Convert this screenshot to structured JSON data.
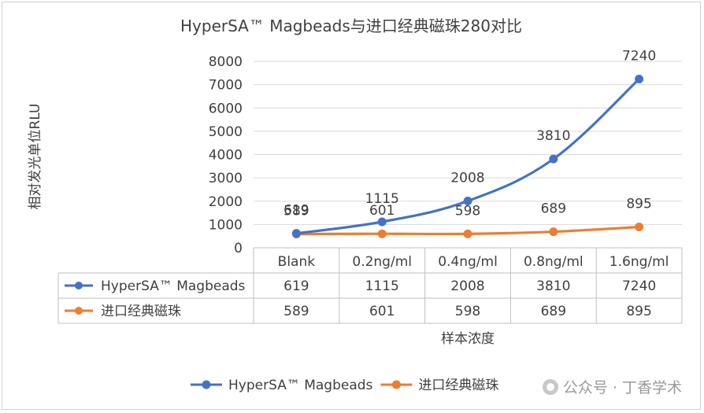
{
  "chart_data": {
    "type": "line",
    "title": "HyperSA™ Magbeads与进口经典磁珠280对比",
    "xlabel": "样本浓度",
    "ylabel": "相对发光单位RLU",
    "categories": [
      "Blank",
      "0.2ng/ml",
      "0.4ng/ml",
      "0.8ng/ml",
      "1.6ng/ml"
    ],
    "ylim": [
      0,
      8000
    ],
    "yticks": [
      0,
      1000,
      2000,
      3000,
      4000,
      5000,
      6000,
      7000,
      8000
    ],
    "grid": true,
    "legend_position": "bottom",
    "data_table": true,
    "series": [
      {
        "name": "HyperSA™ Magbeads",
        "values": [
          619,
          1115,
          2008,
          3810,
          7240
        ],
        "color": "#4472c4"
      },
      {
        "name": "进口经典磁珠",
        "values": [
          589,
          601,
          598,
          689,
          895
        ],
        "color": "#ed7d31"
      }
    ]
  },
  "watermark": {
    "icon": "wechat-icon",
    "text": "公众号 · 丁香学术"
  }
}
